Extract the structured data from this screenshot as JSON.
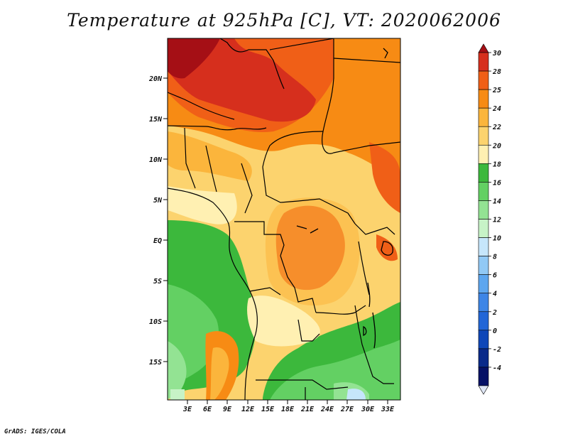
{
  "title": "Temperature at 925hPa [C], VT: 2020062006",
  "credit": "GrADS: IGES/COLA",
  "map": {
    "lon_range": [
      0,
      35
    ],
    "lat_range": [
      -20,
      24
    ],
    "lon_ticks": [
      "3E",
      "6E",
      "9E",
      "12E",
      "15E",
      "18E",
      "21E",
      "24E",
      "27E",
      "30E",
      "33E"
    ],
    "lat_ticks": [
      "20N",
      "15N",
      "10N",
      "5N",
      "EQ",
      "5S",
      "10S",
      "15S"
    ]
  },
  "colorbar": {
    "levels": [
      "30",
      "28",
      "25",
      "24",
      "22",
      "20",
      "18",
      "16",
      "14",
      "12",
      "10",
      "8",
      "6",
      "4",
      "2",
      "0",
      "-2",
      "-4"
    ],
    "colors": [
      "#a50f15",
      "#d62f1d",
      "#f05f17",
      "#f78b14",
      "#fbb53c",
      "#fcd36e",
      "#fff0b2",
      "#3cb83c",
      "#63d063",
      "#93e393",
      "#c7f3c7",
      "#c6e6fb",
      "#91c9f5",
      "#5da6ef",
      "#3d85e6",
      "#2266d7",
      "#0f47b8",
      "#0a2a8a",
      "#061166",
      "#dfe6f5"
    ]
  }
}
